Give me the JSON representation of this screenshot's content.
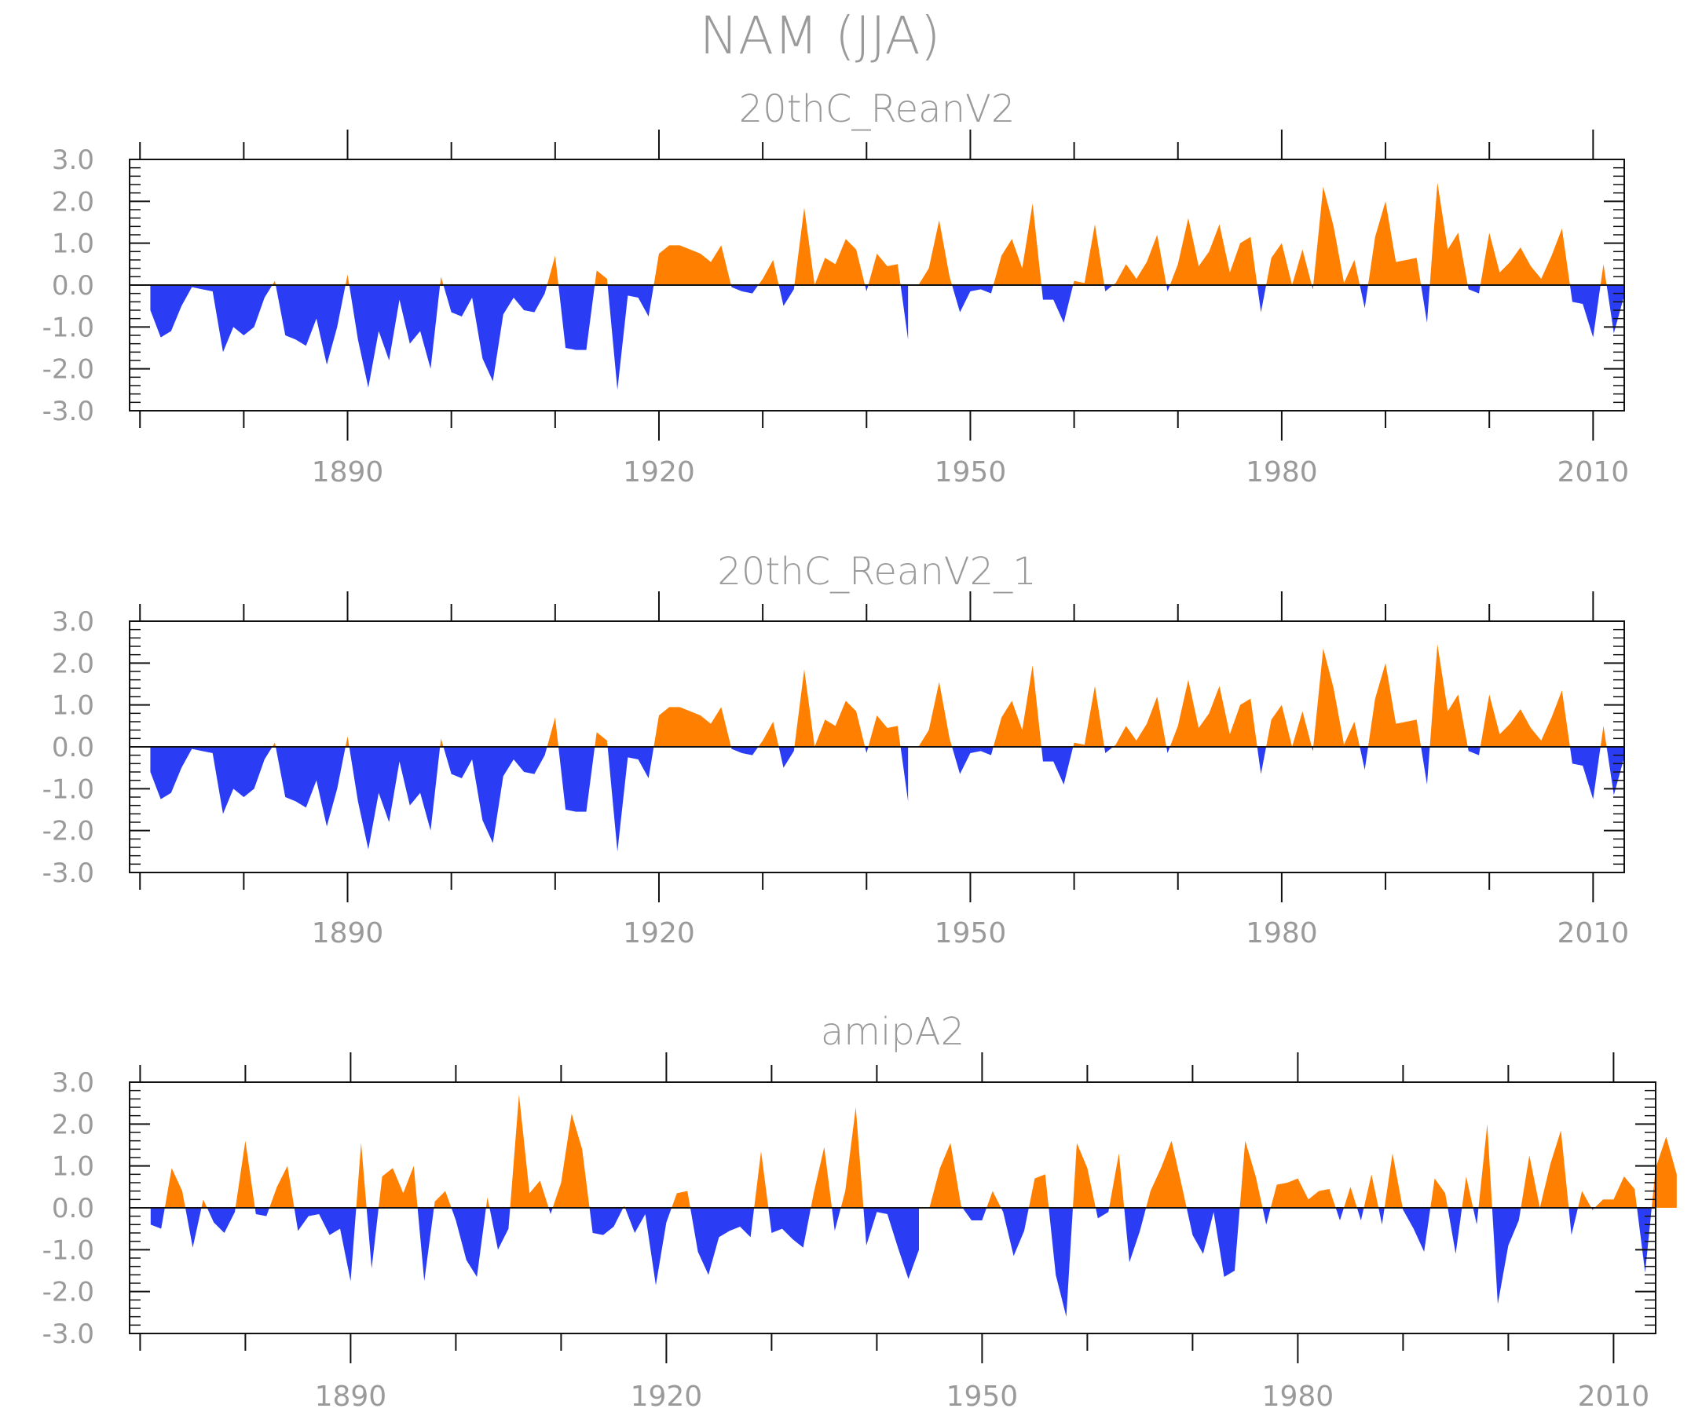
{
  "title": "NAM (JJA)",
  "colors": {
    "positive": "#ff7f00",
    "negative": "#2a3df5",
    "axis": "#111111",
    "text": "#9a9a9a"
  },
  "chart_data": [
    {
      "type": "area",
      "title": "20thC_ReanV2",
      "x_start": 1871,
      "x_end": 2012,
      "xlim": [
        1869,
        2013
      ],
      "ylim": [
        -3.0,
        3.0
      ],
      "y_ticks": [
        "3.0",
        "2.0",
        "1.0",
        "0.0",
        "-1.0",
        "-2.0",
        "-3.0"
      ],
      "x_ticks": [
        "1890",
        "1920",
        "1950",
        "1980",
        "2010"
      ],
      "positive_color": "#ff7f00",
      "negative_color": "#2a3df5",
      "values": [
        -0.6,
        -1.25,
        -1.1,
        -0.5,
        -0.05,
        -0.1,
        -0.15,
        -1.6,
        -1.0,
        -1.2,
        -1.0,
        -0.3,
        0.1,
        -1.2,
        -1.3,
        -1.45,
        -0.8,
        -1.9,
        -1.0,
        0.25,
        -1.3,
        -2.45,
        -1.1,
        -1.8,
        -0.35,
        -1.4,
        -1.1,
        -2.0,
        0.2,
        -0.65,
        -0.75,
        -0.3,
        -1.75,
        -2.3,
        -0.7,
        -0.3,
        -0.6,
        -0.65,
        -0.2,
        0.7,
        -1.5,
        -1.55,
        -1.55,
        0.35,
        0.15,
        -2.5,
        -0.25,
        -0.3,
        -0.75,
        0.75,
        0.95,
        0.95,
        0.85,
        0.75,
        0.55,
        0.95,
        -0.05,
        -0.15,
        -0.2,
        0.15,
        0.6,
        -0.5,
        -0.1,
        1.85,
        0.0,
        0.65,
        0.5,
        1.1,
        0.85,
        -0.15,
        0.75,
        0.45,
        0.5,
        -1.3,
        0.0,
        0.4,
        1.55,
        0.2,
        -0.65,
        -0.15,
        -0.1,
        -0.2,
        0.7,
        1.1,
        0.4,
        1.95,
        -0.35,
        -0.35,
        -0.9,
        0.1,
        0.05,
        1.45,
        -0.15,
        0.05,
        0.5,
        0.15,
        0.55,
        1.2,
        -0.15,
        0.5,
        1.6,
        0.45,
        0.8,
        1.45,
        0.3,
        1.0,
        1.15,
        -0.65,
        0.65,
        1.0,
        0.0,
        0.85,
        -0.1,
        2.35,
        1.4,
        0.05,
        0.6,
        -0.55,
        1.15,
        2.0,
        0.55,
        0.6,
        0.65,
        -0.9,
        2.45,
        0.85,
        1.25,
        -0.1,
        -0.2,
        1.25,
        0.3,
        0.55,
        0.9,
        0.45,
        0.15,
        0.7,
        1.35,
        -0.4,
        -0.45,
        -1.25,
        0.5,
        -1.15,
        -0.25
      ]
    },
    {
      "type": "area",
      "title": "20thC_ReanV2_1",
      "x_start": 1871,
      "x_end": 2012,
      "xlim": [
        1869,
        2013
      ],
      "ylim": [
        -3.0,
        3.0
      ],
      "y_ticks": [
        "3.0",
        "2.0",
        "1.0",
        "0.0",
        "-1.0",
        "-2.0",
        "-3.0"
      ],
      "x_ticks": [
        "1890",
        "1920",
        "1950",
        "1980",
        "2010"
      ],
      "positive_color": "#ff7f00",
      "negative_color": "#2a3df5",
      "values": [
        -0.6,
        -1.25,
        -1.1,
        -0.5,
        -0.05,
        -0.1,
        -0.15,
        -1.6,
        -1.0,
        -1.2,
        -1.0,
        -0.3,
        0.1,
        -1.2,
        -1.3,
        -1.45,
        -0.8,
        -1.9,
        -1.0,
        0.25,
        -1.3,
        -2.45,
        -1.1,
        -1.8,
        -0.35,
        -1.4,
        -1.1,
        -2.0,
        0.2,
        -0.65,
        -0.75,
        -0.3,
        -1.75,
        -2.3,
        -0.7,
        -0.3,
        -0.6,
        -0.65,
        -0.2,
        0.7,
        -1.5,
        -1.55,
        -1.55,
        0.35,
        0.15,
        -2.5,
        -0.25,
        -0.3,
        -0.75,
        0.75,
        0.95,
        0.95,
        0.85,
        0.75,
        0.55,
        0.95,
        -0.05,
        -0.15,
        -0.2,
        0.15,
        0.6,
        -0.5,
        -0.1,
        1.85,
        0.0,
        0.65,
        0.5,
        1.1,
        0.85,
        -0.15,
        0.75,
        0.45,
        0.5,
        -1.3,
        0.0,
        0.4,
        1.55,
        0.2,
        -0.65,
        -0.15,
        -0.1,
        -0.2,
        0.7,
        1.1,
        0.4,
        1.95,
        -0.35,
        -0.35,
        -0.9,
        0.1,
        0.05,
        1.45,
        -0.15,
        0.05,
        0.5,
        0.15,
        0.55,
        1.2,
        -0.15,
        0.5,
        1.6,
        0.45,
        0.8,
        1.45,
        0.3,
        1.0,
        1.15,
        -0.65,
        0.65,
        1.0,
        0.0,
        0.85,
        -0.1,
        2.35,
        1.4,
        0.05,
        0.6,
        -0.55,
        1.15,
        2.0,
        0.55,
        0.6,
        0.65,
        -0.9,
        2.45,
        0.85,
        1.25,
        -0.1,
        -0.2,
        1.25,
        0.3,
        0.55,
        0.9,
        0.45,
        0.15,
        0.7,
        1.35,
        -0.4,
        -0.45,
        -1.25,
        0.5,
        -1.15,
        -0.25
      ]
    },
    {
      "type": "area",
      "title": "amipA2",
      "x_start": 1871,
      "x_end": 2012,
      "xlim": [
        1869,
        2014
      ],
      "ylim": [
        -3.0,
        3.0
      ],
      "y_ticks": [
        "3.0",
        "2.0",
        "1.0",
        "0.0",
        "-1.0",
        "-2.0",
        "-3.0"
      ],
      "x_ticks": [
        "1890",
        "1920",
        "1950",
        "1980",
        "2010"
      ],
      "positive_color": "#ff7f00",
      "negative_color": "#2a3df5",
      "values": [
        -0.4,
        -0.5,
        0.95,
        0.4,
        -0.95,
        0.2,
        -0.35,
        -0.6,
        -0.1,
        1.6,
        -0.15,
        -0.2,
        0.5,
        1.0,
        -0.55,
        -0.2,
        -0.15,
        -0.65,
        -0.5,
        -1.75,
        1.55,
        -1.45,
        0.75,
        0.95,
        0.35,
        1.0,
        -1.75,
        0.15,
        0.4,
        -0.3,
        -1.25,
        -1.65,
        0.25,
        -1.0,
        -0.5,
        2.7,
        0.35,
        0.65,
        -0.15,
        0.6,
        2.25,
        1.4,
        -0.6,
        -0.65,
        -0.45,
        0.05,
        -0.6,
        -0.15,
        -1.85,
        -0.35,
        0.35,
        0.4,
        -1.05,
        -1.6,
        -0.7,
        -0.55,
        -0.45,
        -0.7,
        1.35,
        -0.6,
        -0.5,
        -0.75,
        -0.95,
        0.35,
        1.45,
        -0.55,
        0.4,
        2.4,
        -0.9,
        -0.1,
        -0.15,
        -0.95,
        -1.7,
        -1.0,
        0.0,
        0.95,
        1.55,
        0.05,
        -0.3,
        -0.3,
        0.4,
        -0.1,
        -1.15,
        -0.55,
        0.7,
        0.8,
        -1.6,
        -2.6,
        1.55,
        0.95,
        -0.25,
        -0.1,
        1.3,
        -1.3,
        -0.55,
        0.4,
        0.95,
        1.6,
        0.5,
        -0.65,
        -1.1,
        -0.1,
        -1.65,
        -1.5,
        1.6,
        0.75,
        -0.4,
        0.55,
        0.6,
        0.7,
        0.2,
        0.4,
        0.45,
        -0.3,
        0.5,
        -0.3,
        0.8,
        -0.4,
        1.3,
        -0.05,
        -0.5,
        -1.05,
        0.7,
        0.35,
        -1.1,
        0.75,
        -0.4,
        2.0,
        -2.3,
        -0.9,
        -0.3,
        1.25,
        0.0,
        1.05,
        1.85,
        -0.65,
        0.4,
        -0.05,
        0.2,
        0.2,
        0.75,
        0.45,
        -1.55,
        0.95,
        1.7,
        0.8
      ]
    }
  ]
}
